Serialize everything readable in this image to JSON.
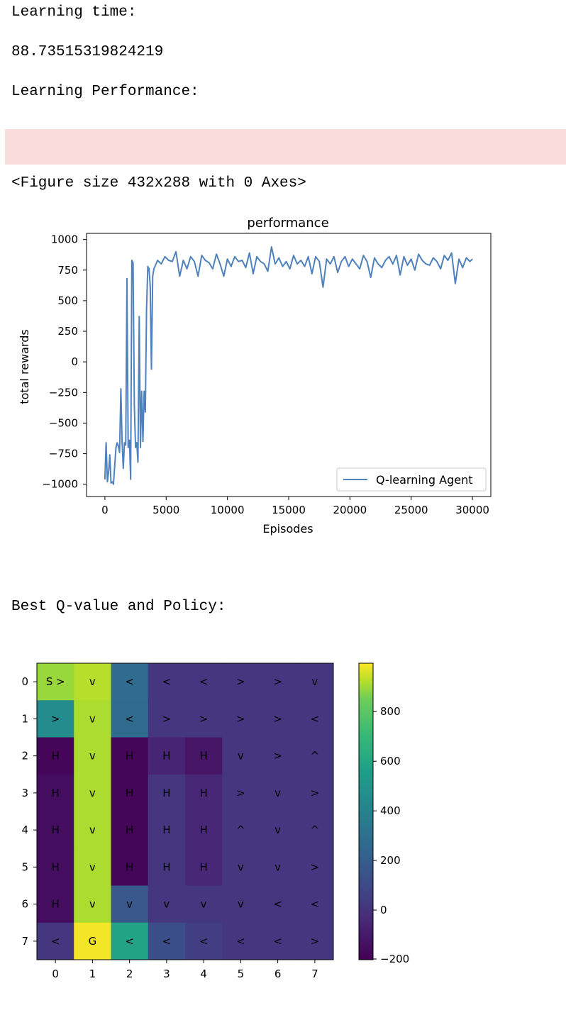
{
  "output": {
    "learning_time_label": "Learning time:",
    "learning_time_value": "88.73515319824219",
    "performance_label": "Learning Performance:",
    "figure_repr": "<Figure size 432x288 with 0 Axes>",
    "policy_label": "Best Q-value and Policy:",
    "stderr_color": "#f8dddc"
  },
  "chart_data": [
    {
      "type": "line",
      "title": "performance",
      "xlabel": "Episodes",
      "ylabel": "total rewards",
      "xlim": [
        -1500,
        31500
      ],
      "ylim": [
        -1100,
        1050
      ],
      "xticks": [
        0,
        5000,
        10000,
        15000,
        20000,
        25000,
        30000
      ],
      "xtick_labels": [
        "0",
        "5000",
        "10000",
        "15000",
        "20000",
        "25000",
        "30000"
      ],
      "yticks": [
        1000,
        750,
        500,
        250,
        0,
        -250,
        -500,
        -750,
        -1000
      ],
      "ytick_labels": [
        "1000",
        "750",
        "500",
        "250",
        "0",
        "−250",
        "−500",
        "−750",
        "−1000"
      ],
      "legend": "lower right",
      "color": "#4f81bd",
      "series": [
        {
          "name": "Q-learning Agent",
          "x": [
            0,
            100,
            200,
            300,
            400,
            500,
            600,
            700,
            800,
            900,
            1000,
            1100,
            1200,
            1300,
            1400,
            1500,
            1600,
            1700,
            1800,
            1900,
            2000,
            2100,
            2200,
            2300,
            2400,
            2500,
            2600,
            2700,
            2800,
            2900,
            3000,
            3100,
            3200,
            3300,
            3400,
            3500,
            3600,
            3700,
            3800,
            3900,
            4000,
            4300,
            4600,
            4900,
            5200,
            5500,
            5800,
            6100,
            6400,
            6700,
            7000,
            7300,
            7600,
            7900,
            8200,
            8500,
            8800,
            9100,
            9400,
            9700,
            10000,
            10300,
            10600,
            10900,
            11200,
            11500,
            11800,
            12100,
            12400,
            12700,
            13000,
            13300,
            13600,
            13900,
            14200,
            14500,
            14800,
            15100,
            15400,
            15700,
            16000,
            16300,
            16600,
            16900,
            17200,
            17500,
            17800,
            18100,
            18400,
            18700,
            19000,
            19300,
            19600,
            19900,
            20200,
            20500,
            20800,
            21100,
            21400,
            21700,
            22000,
            22300,
            22600,
            22900,
            23200,
            23500,
            23800,
            24100,
            24400,
            24700,
            25000,
            25300,
            25600,
            25900,
            26200,
            26500,
            26800,
            27100,
            27400,
            27700,
            28000,
            28300,
            28600,
            28900,
            29200,
            29500,
            29800,
            30000
          ],
          "values": [
            -960,
            -660,
            -980,
            -900,
            -760,
            -990,
            -980,
            -1000,
            -850,
            -700,
            -660,
            -690,
            -740,
            -220,
            -650,
            -870,
            -660,
            -680,
            680,
            -700,
            -640,
            -960,
            830,
            810,
            -350,
            -700,
            -660,
            -820,
            370,
            -700,
            -240,
            -650,
            -240,
            -410,
            430,
            780,
            760,
            620,
            -60,
            700,
            760,
            830,
            800,
            860,
            830,
            820,
            900,
            700,
            830,
            760,
            860,
            820,
            700,
            870,
            830,
            810,
            760,
            880,
            800,
            700,
            840,
            780,
            860,
            820,
            830,
            770,
            890,
            720,
            860,
            820,
            800,
            740,
            940,
            800,
            850,
            780,
            820,
            760,
            870,
            800,
            830,
            780,
            860,
            720,
            860,
            820,
            610,
            840,
            800,
            860,
            730,
            820,
            860,
            780,
            840,
            800,
            760,
            870,
            820,
            690,
            850,
            800,
            770,
            830,
            860,
            800,
            870,
            710,
            860,
            790,
            840,
            750,
            880,
            830,
            800,
            790,
            850,
            820,
            760,
            870,
            830,
            890,
            640,
            840,
            770,
            850,
            820,
            840
          ]
        }
      ]
    },
    {
      "type": "heatmap",
      "rows": [
        "0",
        "1",
        "2",
        "3",
        "4",
        "5",
        "6",
        "7"
      ],
      "cols": [
        "0",
        "1",
        "2",
        "3",
        "4",
        "5",
        "6",
        "7"
      ],
      "colormap": "viridis",
      "vmin": -200,
      "vmax": 1000,
      "colorbar_ticks": [
        800,
        600,
        400,
        200,
        0,
        -200
      ],
      "colorbar_tick_labels": [
        "800",
        "600",
        "400",
        "200",
        "0",
        "−200"
      ],
      "values": [
        [
          900,
          930,
          280,
          20,
          20,
          20,
          20,
          20
        ],
        [
          450,
          920,
          270,
          20,
          20,
          20,
          20,
          20
        ],
        [
          -180,
          920,
          -180,
          -60,
          -120,
          20,
          20,
          20
        ],
        [
          -150,
          920,
          -180,
          20,
          -50,
          20,
          20,
          20
        ],
        [
          -150,
          920,
          -180,
          20,
          -50,
          20,
          20,
          20
        ],
        [
          -150,
          920,
          -180,
          20,
          -50,
          20,
          20,
          20
        ],
        [
          -150,
          920,
          170,
          20,
          20,
          20,
          20,
          20
        ],
        [
          20,
          990,
          580,
          120,
          50,
          20,
          20,
          20
        ]
      ],
      "annotations": [
        [
          "S >",
          "v",
          "<",
          "<",
          "<",
          ">",
          ">",
          "v"
        ],
        [
          ">",
          "v",
          "<",
          ">",
          ">",
          ">",
          ">",
          "<"
        ],
        [
          "H",
          "v",
          "H",
          "H",
          "H",
          "v",
          ">",
          "^"
        ],
        [
          "H",
          "v",
          "H",
          "H",
          "H",
          ">",
          "v",
          ">"
        ],
        [
          "H",
          "v",
          "H",
          "H",
          "H",
          "^",
          "v",
          "^"
        ],
        [
          "H",
          "v",
          "H",
          "H",
          "H",
          "v",
          "v",
          ">"
        ],
        [
          "H",
          "v",
          "v",
          "v",
          "v",
          "v",
          "<",
          "<"
        ],
        [
          "<",
          "G",
          "<",
          "<",
          "<",
          "<",
          "<",
          ">"
        ]
      ]
    }
  ]
}
